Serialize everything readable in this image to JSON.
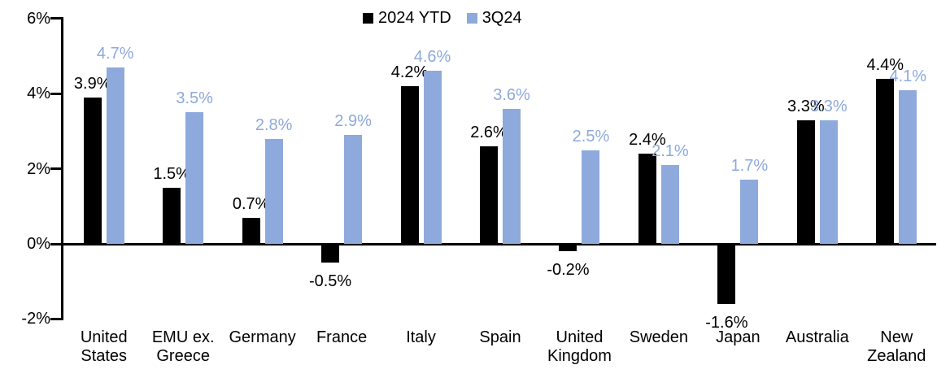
{
  "chart_data": {
    "type": "bar",
    "title": "",
    "xlabel": "",
    "ylabel": "",
    "grid": false,
    "legend_position": "top-center",
    "background_color": "#FFFFFF",
    "axis_color": "#000000",
    "categories": [
      "United States",
      "EMU ex. Greece",
      "Germany",
      "France",
      "Italy",
      "Spain",
      "United Kingdom",
      "Sweden",
      "Japan",
      "Australia",
      "New Zealand"
    ],
    "category_display": [
      "United\nStates",
      "EMU ex.\nGreece",
      "Germany",
      "France",
      "Italy",
      "Spain",
      "United\nKingdom",
      "Sweden",
      "Japan",
      "Australia",
      "New\nZealand"
    ],
    "series": [
      {
        "name": "2024 YTD",
        "color": "#000000",
        "label_color": "#000000",
        "values": [
          3.9,
          1.5,
          0.7,
          -0.5,
          4.2,
          2.6,
          -0.2,
          2.4,
          -1.6,
          3.3,
          4.4
        ],
        "labels": [
          "3.9%",
          "1.5%",
          "0.7%",
          "-0.5%",
          "4.2%",
          "2.6%",
          "-0.2%",
          "2.4%",
          "-1.6%",
          "3.3%",
          "4.4%"
        ]
      },
      {
        "name": "3Q24",
        "color": "#8EA9DB",
        "label_color": "#8EA9DB",
        "values": [
          4.7,
          3.5,
          2.8,
          2.9,
          4.6,
          3.6,
          2.5,
          2.1,
          1.7,
          3.3,
          4.1
        ],
        "labels": [
          "4.7%",
          "3.5%",
          "2.8%",
          "2.9%",
          "4.6%",
          "3.6%",
          "2.5%",
          "2.1%",
          "1.7%",
          "3.3%",
          "4.1%"
        ]
      }
    ],
    "y_axis": {
      "min": -2,
      "max": 6,
      "ticks": [
        {
          "value": 6,
          "label": "6%"
        },
        {
          "value": 4,
          "label": "4%"
        },
        {
          "value": 2,
          "label": "2%"
        },
        {
          "value": 0,
          "label": "0%"
        },
        {
          "value": -2,
          "label": "-2%"
        }
      ]
    }
  }
}
